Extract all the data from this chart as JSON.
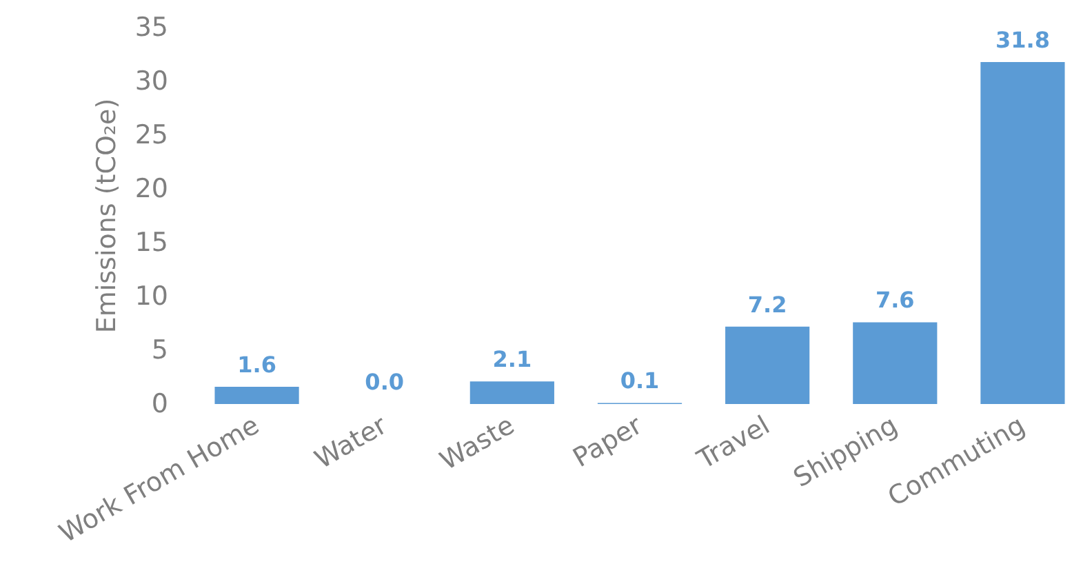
{
  "chart_data": {
    "type": "bar",
    "ylabel": "Emissions (tCO₂e)",
    "categories": [
      "Work From Home",
      "Water",
      "Waste",
      "Paper",
      "Travel",
      "Shipping",
      "Commuting"
    ],
    "values": [
      1.6,
      0.0,
      2.1,
      0.1,
      7.2,
      7.6,
      31.8
    ],
    "color": "#5b9bd5",
    "ylim": [
      0,
      35
    ],
    "yticks": [
      0,
      5,
      10,
      15,
      20,
      25,
      30,
      35
    ],
    "value_labels": [
      "1.6",
      "0.0",
      "2.1",
      "0.1",
      "7.2",
      "7.6",
      "31.8"
    ],
    "grid": false
  }
}
